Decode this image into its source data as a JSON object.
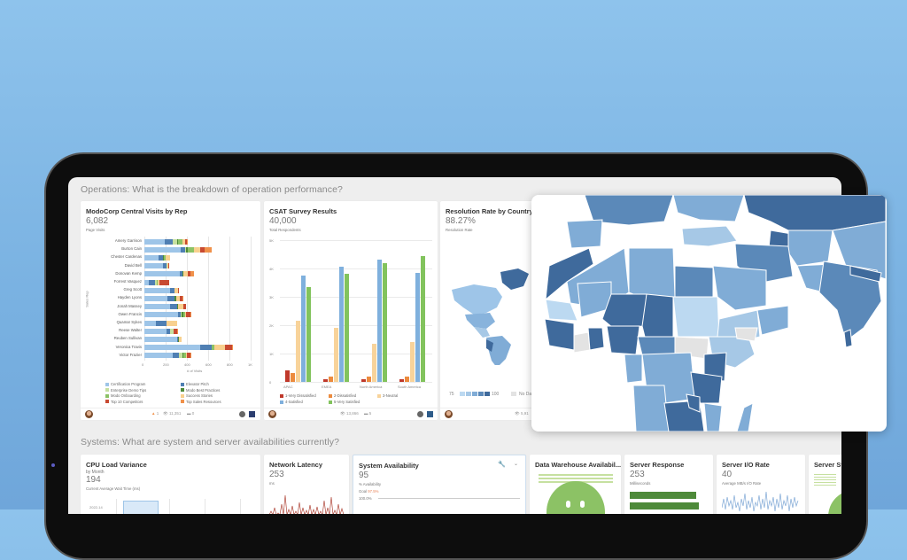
{
  "sections": {
    "operations": "Operations: What is the breakdown of operation performance?",
    "systems": "Systems: What are system and server availabilities currently?"
  },
  "visits_card": {
    "title": "ModoCorp Central Visits by Rep",
    "value": "6,082",
    "subtitle": "Page Visits",
    "y_axis_label": "Sales Rep",
    "x_axis_label": "# of Visits",
    "x_ticks": [
      "0",
      "200",
      "400",
      "600",
      "800",
      "1K"
    ],
    "footer": {
      "likes": "1",
      "views": "11,351",
      "comments": "0"
    }
  },
  "csat_card": {
    "title": "CSAT Survey Results",
    "value": "40,000",
    "subtitle": "Total Respondents",
    "y_ticks": [
      "5K",
      "4K",
      "3K",
      "2K",
      "1K",
      "0"
    ],
    "footer": {
      "views": "13,866",
      "comments": "5"
    }
  },
  "resolution_card": {
    "title": "Resolution Rate by Country",
    "value": "88.27%",
    "subtitle": "Resolution Rate",
    "legend_min": "75",
    "legend_max": "100",
    "legend_nodata": "No Data",
    "footer": {
      "views": "5,91"
    }
  },
  "cpu_card": {
    "title": "CPU Load Variance",
    "byline": "by Month",
    "value": "194",
    "subtitle": "Current Average Wait Time (ms)",
    "y_tick": "2022-14"
  },
  "latency_card": {
    "title": "Network Latency",
    "value": "253",
    "subtitle": "ms"
  },
  "availability_card": {
    "title": "System Availability",
    "value": "95",
    "subtitle": "% Availability",
    "goal_label": "Goal",
    "goal_value": "97.5%",
    "line_label": "100.0%"
  },
  "warehouse_card": {
    "title": "Data Warehouse Availabil..."
  },
  "response_card": {
    "title": "Server Response",
    "value": "253",
    "subtitle": "Milliseconds"
  },
  "io_card": {
    "title": "Server I/O Rate",
    "value": "40",
    "subtitle": "Average MB/s I/O Rate"
  },
  "status_card": {
    "title": "Server St..."
  },
  "colors": {
    "cert": "#9ec5e8",
    "elevator": "#4f7fb3",
    "enterprise": "#c6e0a0",
    "modo_best": "#4e8a3a",
    "onboarding": "#8cc265",
    "success": "#f8d08e",
    "top10": "#c84a32",
    "top_sales": "#f0914a",
    "csat1": "#c0392b",
    "csat2": "#ec8b3e",
    "csat3": "#f8d39a",
    "csat4": "#7fb0dd",
    "csat5": "#82c35d",
    "map_dark": "#3f6a9c",
    "map_mid": "#5b89b9",
    "map_light": "#80acd6",
    "map_lighter": "#a6c8e6",
    "map_lightest": "#bcd9f1",
    "map_nodata": "#e3e3e3"
  },
  "chart_data": [
    {
      "type": "bar",
      "title": "ModoCorp Central Visits by Rep",
      "orientation": "horizontal-stacked",
      "xlabel": "# of Visits",
      "ylabel": "Sales Rep",
      "xlim": [
        0,
        1000
      ],
      "categories": [
        "Amery Garrison",
        "Burton Cain",
        "Chester Cardenas",
        "David Bell",
        "Donovan Kemp",
        "Forrest Vasquez",
        "Greg Scott",
        "Hayden Lyons",
        "Jonah Massey",
        "Owen Francis",
        "Quamar Sykes",
        "Reese Walter",
        "Reuben Sullivan",
        "Veronica Travis",
        "Victor Frazier"
      ],
      "series": [
        {
          "name": "Certification Program",
          "values": [
            195,
            340,
            135,
            175,
            330,
            45,
            240,
            215,
            240,
            315,
            110,
            205,
            305,
            525,
            265
          ]
        },
        {
          "name": "Elevator Pitch",
          "values": [
            75,
            40,
            40,
            30,
            30,
            55,
            45,
            65,
            65,
            25,
            95,
            40,
            10,
            110,
            60
          ]
        },
        {
          "name": "Enterprise Demo Tips",
          "values": [
            35,
            15,
            0,
            10,
            0,
            15,
            0,
            0,
            0,
            10,
            0,
            30,
            0,
            0,
            35
          ]
        },
        {
          "name": "Modo Best Practices",
          "values": [
            10,
            15,
            10,
            0,
            10,
            0,
            0,
            20,
            10,
            20,
            0,
            0,
            10,
            0,
            10
          ]
        },
        {
          "name": "Modo Onboarding",
          "values": [
            40,
            55,
            15,
            0,
            0,
            10,
            0,
            0,
            0,
            15,
            0,
            0,
            0,
            25,
            20
          ]
        },
        {
          "name": "Success Stories",
          "values": [
            30,
            60,
            40,
            10,
            40,
            15,
            30,
            35,
            50,
            10,
            105,
            0,
            25,
            100,
            10
          ]
        },
        {
          "name": "Top 10 Competitors",
          "values": [
            15,
            45,
            0,
            10,
            25,
            90,
            10,
            20,
            25,
            35,
            0,
            30,
            0,
            65,
            30
          ]
        },
        {
          "name": "Top Sales Resources",
          "values": [
            10,
            65,
            0,
            0,
            35,
            0,
            0,
            10,
            0,
            10,
            0,
            10,
            0,
            5,
            15
          ]
        }
      ]
    },
    {
      "type": "bar",
      "title": "CSAT Survey Results",
      "ylim": [
        0,
        5000
      ],
      "categories": [
        "APAC",
        "EMEA",
        "North America",
        "South America"
      ],
      "series": [
        {
          "name": "1-Very Dissatisfied",
          "values": [
            400,
            100,
            100,
            100
          ]
        },
        {
          "name": "2-Dissatisfied",
          "values": [
            300,
            200,
            200,
            200
          ]
        },
        {
          "name": "3-Neutral",
          "values": [
            2150,
            1900,
            1350,
            1400
          ]
        },
        {
          "name": "4-Satisfied",
          "values": [
            3750,
            4050,
            4300,
            3850
          ]
        },
        {
          "name": "5-Very Satisfied",
          "values": [
            3350,
            3800,
            4200,
            4450
          ]
        }
      ]
    }
  ]
}
